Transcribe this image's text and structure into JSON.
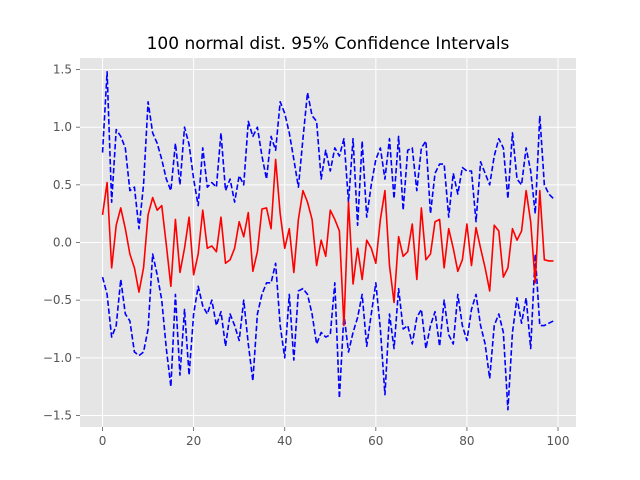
{
  "chart_data": {
    "type": "line",
    "title": "100 normal dist. 95% Confidence Intervals",
    "xlabel": "",
    "ylabel": "",
    "xlim": [
      -4.95,
      103.95
    ],
    "ylim": [
      -1.6,
      1.6
    ],
    "xticks": [
      0,
      20,
      40,
      60,
      80,
      100
    ],
    "xtick_labels": [
      "0",
      "20",
      "40",
      "60",
      "80",
      "100"
    ],
    "yticks": [
      -1.5,
      -1.0,
      -0.5,
      0.0,
      0.5,
      1.0,
      1.5
    ],
    "ytick_labels": [
      "−1.5",
      "−1.0",
      "−0.5",
      "0.0",
      "0.5",
      "1.0",
      "1.5"
    ],
    "grid": true,
    "background": "#e5e5e5",
    "x": [
      0,
      1,
      2,
      3,
      4,
      5,
      6,
      7,
      8,
      9,
      10,
      11,
      12,
      13,
      14,
      15,
      16,
      17,
      18,
      19,
      20,
      21,
      22,
      23,
      24,
      25,
      26,
      27,
      28,
      29,
      30,
      31,
      32,
      33,
      34,
      35,
      36,
      37,
      38,
      39,
      40,
      41,
      42,
      43,
      44,
      45,
      46,
      47,
      48,
      49,
      50,
      51,
      52,
      53,
      54,
      55,
      56,
      57,
      58,
      59,
      60,
      61,
      62,
      63,
      64,
      65,
      66,
      67,
      68,
      69,
      70,
      71,
      72,
      73,
      74,
      75,
      76,
      77,
      78,
      79,
      80,
      81,
      82,
      83,
      84,
      85,
      86,
      87,
      88,
      89,
      90,
      91,
      92,
      93,
      94,
      95,
      96,
      97,
      98,
      99
    ],
    "series": [
      {
        "color": "#0000ff",
        "dash": "dashed",
        "values": [
          0.78,
          1.48,
          0.35,
          0.98,
          0.92,
          0.82,
          0.45,
          0.48,
          0.12,
          0.5,
          1.22,
          0.95,
          0.86,
          0.72,
          0.55,
          0.45,
          0.86,
          0.5,
          1.0,
          0.85,
          0.55,
          0.32,
          0.82,
          0.48,
          0.52,
          0.48,
          0.95,
          0.45,
          0.55,
          0.35,
          0.58,
          0.5,
          1.05,
          0.92,
          1.0,
          0.75,
          0.55,
          0.92,
          0.8,
          1.22,
          1.12,
          0.95,
          0.72,
          0.48,
          0.9,
          1.3,
          1.1,
          1.05,
          0.55,
          0.8,
          0.62,
          0.82,
          0.75,
          0.9,
          0.35,
          0.9,
          0.15,
          0.88,
          0.22,
          0.5,
          0.72,
          0.82,
          0.55,
          0.9,
          0.38,
          0.92,
          0.28,
          0.8,
          0.82,
          0.45,
          0.82,
          0.88,
          0.25,
          0.6,
          0.68,
          0.68,
          0.22,
          0.6,
          0.42,
          0.65,
          0.62,
          0.62,
          0.18,
          0.7,
          0.6,
          0.5,
          0.75,
          0.9,
          0.82,
          0.38,
          0.95,
          0.55,
          0.5,
          0.82,
          0.62,
          0.25,
          1.1,
          0.5,
          0.42,
          0.38
        ]
      },
      {
        "color": "#0000ff",
        "dash": "dashed",
        "values": [
          -0.3,
          -0.45,
          -0.82,
          -0.72,
          -0.32,
          -0.62,
          -0.68,
          -0.95,
          -0.98,
          -0.95,
          -0.75,
          -0.1,
          -0.28,
          -0.5,
          -0.92,
          -1.25,
          -0.45,
          -1.15,
          -0.58,
          -1.15,
          -0.62,
          -0.38,
          -0.55,
          -0.62,
          -0.5,
          -0.72,
          -0.6,
          -0.9,
          -0.62,
          -0.72,
          -0.85,
          -0.5,
          -0.88,
          -1.2,
          -0.62,
          -0.45,
          -0.35,
          -0.35,
          -0.18,
          -0.72,
          -1.0,
          -0.45,
          -1.02,
          -0.42,
          -0.4,
          -0.45,
          -0.62,
          -0.88,
          -0.78,
          -0.82,
          -0.8,
          -0.35,
          -1.35,
          -0.62,
          -0.95,
          -0.78,
          -0.65,
          -0.45,
          -0.9,
          -0.62,
          -0.35,
          -0.75,
          -1.32,
          -0.62,
          -0.92,
          -0.4,
          -0.75,
          -0.72,
          -0.88,
          -0.65,
          -0.58,
          -0.92,
          -0.72,
          -0.6,
          -0.9,
          -0.5,
          -0.8,
          -0.88,
          -0.45,
          -0.72,
          -0.85,
          -0.58,
          -0.45,
          -0.72,
          -0.88,
          -1.18,
          -0.72,
          -0.62,
          -0.78,
          -1.45,
          -0.78,
          -0.48,
          -0.7,
          -0.48,
          -0.92,
          -0.1,
          -0.72,
          -0.72,
          -0.7,
          -0.68
        ]
      },
      {
        "color": "#ff0000",
        "dash": "solid",
        "values": [
          0.24,
          0.52,
          -0.22,
          0.15,
          0.3,
          0.12,
          -0.1,
          -0.22,
          -0.43,
          -0.22,
          0.24,
          0.39,
          0.28,
          0.32,
          -0.02,
          -0.38,
          0.2,
          -0.26,
          -0.05,
          0.22,
          -0.28,
          -0.1,
          0.28,
          -0.05,
          -0.03,
          -0.08,
          0.22,
          -0.18,
          -0.15,
          -0.05,
          0.18,
          0.05,
          0.26,
          -0.25,
          -0.08,
          0.29,
          0.3,
          0.12,
          0.72,
          0.25,
          -0.05,
          0.12,
          -0.26,
          0.2,
          0.45,
          0.35,
          0.2,
          -0.2,
          0.02,
          -0.12,
          0.28,
          0.2,
          0.1,
          -0.72,
          0.35,
          -0.36,
          -0.05,
          -0.32,
          0.02,
          -0.05,
          -0.18,
          0.2,
          0.45,
          -0.2,
          -0.52,
          0.05,
          -0.12,
          -0.08,
          0.16,
          -0.32,
          0.3,
          -0.15,
          -0.1,
          0.18,
          0.2,
          -0.22,
          0.12,
          -0.05,
          -0.25,
          -0.15,
          0.16,
          -0.2,
          0.13,
          -0.05,
          -0.22,
          -0.42,
          0.15,
          0.1,
          -0.3,
          -0.22,
          0.12,
          0.02,
          0.1,
          0.45,
          0.18,
          -0.35,
          0.45,
          -0.15,
          -0.16,
          -0.16
        ]
      }
    ]
  }
}
